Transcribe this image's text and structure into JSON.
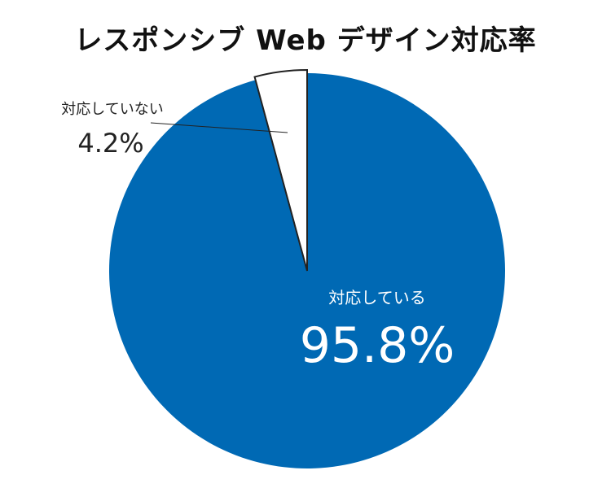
{
  "chart_data": {
    "type": "pie",
    "title": "レスポンシブ Web デザイン対応率",
    "slices": [
      {
        "label": "対応している",
        "value": 95.8,
        "display": "95.8%",
        "color": "#0069b4",
        "label_color": "#ffffff"
      },
      {
        "label": "対応していない",
        "value": 4.2,
        "display": "4.2%",
        "color": "#ffffff",
        "label_color": "#222222"
      }
    ],
    "legend": "none",
    "outline_color": "#222222"
  }
}
